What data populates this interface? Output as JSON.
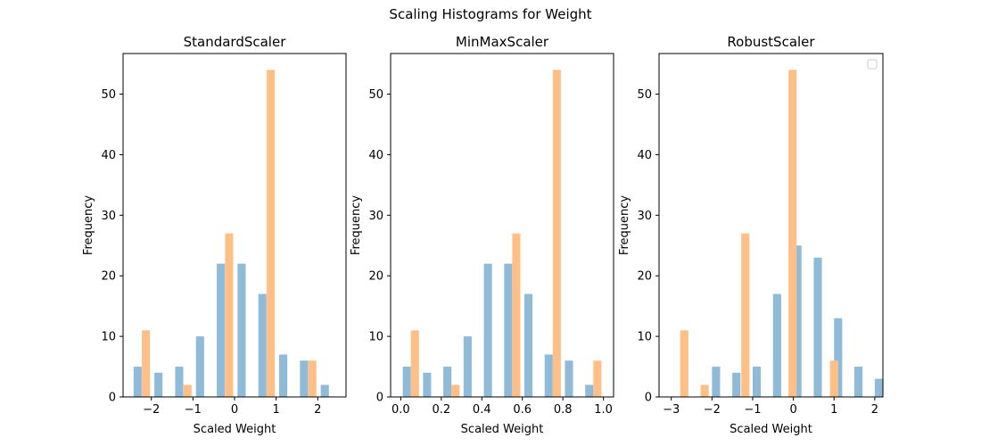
{
  "figure": {
    "suptitle": "Scaling Histograms for Weight"
  },
  "colors": {
    "series_a": "#8fbbd9",
    "series_b": "#ffbf86",
    "axis": "#000000"
  },
  "chart_data": [
    {
      "type": "bar",
      "title": "StandardScaler",
      "xlabel": "Scaled Weight",
      "ylabel": "Frequency",
      "xlim": [
        -2.68,
        2.68
      ],
      "ylim": [
        0,
        56.7
      ],
      "xticks": [
        -2,
        -1,
        0,
        1,
        2
      ],
      "xtick_labels": [
        "−2",
        "−1",
        "0",
        "1",
        "2"
      ],
      "yticks": [
        0,
        10,
        20,
        30,
        40,
        50
      ],
      "ytick_labels": [
        "0",
        "10",
        "20",
        "30",
        "40",
        "50"
      ],
      "bar_width": 0.195,
      "legend_box": false,
      "series": [
        {
          "x": [
            -2.33,
            -1.83,
            -1.33,
            -0.83,
            -0.33,
            0.17,
            0.67,
            1.17,
            1.67,
            2.17
          ],
          "values": [
            5,
            4,
            5,
            10,
            22,
            22,
            17,
            7,
            6,
            2
          ]
        },
        {
          "x": [
            -2.13,
            -1.13,
            -0.13,
            0.87,
            1.87
          ],
          "values": [
            11,
            2,
            27,
            54,
            6
          ]
        }
      ]
    },
    {
      "type": "bar",
      "title": "MinMaxScaler",
      "xlabel": "Scaled Weight",
      "ylabel": "Frequency",
      "xlim": [
        -0.05,
        1.05
      ],
      "ylim": [
        0,
        56.7
      ],
      "xticks": [
        0.0,
        0.2,
        0.4,
        0.6,
        0.8,
        1.0
      ],
      "xtick_labels": [
        "0.0",
        "0.2",
        "0.4",
        "0.6",
        "0.8",
        "1.0"
      ],
      "yticks": [
        0,
        10,
        20,
        30,
        40,
        50
      ],
      "ytick_labels": [
        "0",
        "10",
        "20",
        "30",
        "40",
        "50"
      ],
      "bar_width": 0.04,
      "legend_box": false,
      "series": [
        {
          "x": [
            0.03,
            0.13,
            0.23,
            0.33,
            0.43,
            0.53,
            0.63,
            0.73,
            0.83,
            0.93
          ],
          "values": [
            5,
            4,
            5,
            10,
            22,
            22,
            17,
            7,
            6,
            2
          ]
        },
        {
          "x": [
            0.07,
            0.27,
            0.57,
            0.77,
            0.97
          ],
          "values": [
            11,
            2,
            27,
            54,
            6
          ]
        }
      ]
    },
    {
      "type": "bar",
      "title": "RobustScaler",
      "xlabel": "Scaled Weight",
      "ylabel": "Frequency",
      "xlim": [
        -3.3,
        2.2
      ],
      "ylim": [
        0,
        56.7
      ],
      "xticks": [
        -3,
        -2,
        -1,
        0,
        1,
        2
      ],
      "xtick_labels": [
        "−3",
        "−2",
        "−1",
        "0",
        "1",
        "2"
      ],
      "yticks": [
        0,
        10,
        20,
        30,
        40,
        50
      ],
      "ytick_labels": [
        "0",
        "10",
        "20",
        "30",
        "40",
        "50"
      ],
      "bar_width": 0.2,
      "legend_box": true,
      "series": [
        {
          "x": [
            -2.4,
            -1.9,
            -1.4,
            -0.9,
            -0.4,
            0.1,
            0.6,
            1.1,
            1.6,
            2.1
          ],
          "values": [
            0,
            5,
            4,
            5,
            17,
            25,
            23,
            13,
            5,
            3
          ]
        },
        {
          "x": [
            -2.68,
            -2.18,
            -1.18,
            -0.02,
            1.0
          ],
          "values": [
            11,
            2,
            27,
            54,
            6
          ]
        }
      ]
    }
  ]
}
